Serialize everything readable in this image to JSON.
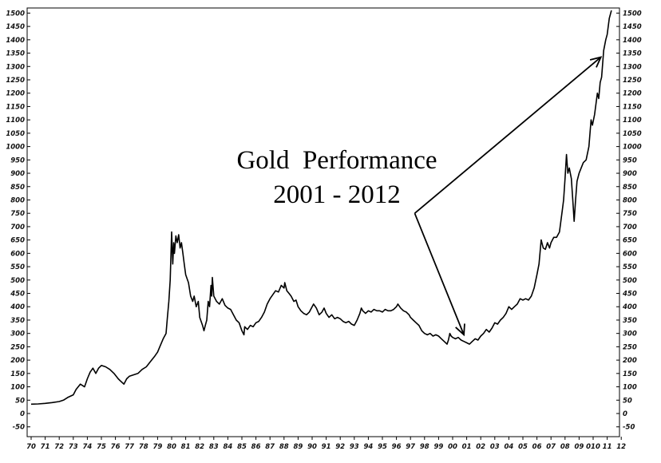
{
  "chart_data": {
    "type": "line",
    "title_lines": [
      "Gold  Performance",
      "2001 - 2012"
    ],
    "xlabel": "",
    "ylabel": "",
    "xlim": [
      1970,
      1913
    ],
    "ylim": [
      -50,
      1500
    ],
    "y_ticks": [
      -50,
      0,
      50,
      100,
      150,
      200,
      250,
      300,
      350,
      400,
      450,
      500,
      550,
      600,
      650,
      700,
      750,
      800,
      850,
      900,
      950,
      1000,
      1050,
      1100,
      1150,
      1200,
      1250,
      1300,
      1350,
      1400,
      1450,
      1500
    ],
    "x_ticks": [
      {
        "label": "70",
        "x": 1970
      },
      {
        "label": "71",
        "x": 1971
      },
      {
        "label": "72",
        "x": 1972
      },
      {
        "label": "73",
        "x": 1973
      },
      {
        "label": "74",
        "x": 1974
      },
      {
        "label": "75",
        "x": 1975
      },
      {
        "label": "76",
        "x": 1976
      },
      {
        "label": "77",
        "x": 1977
      },
      {
        "label": "78",
        "x": 1978
      },
      {
        "label": "79",
        "x": 1979
      },
      {
        "label": "80",
        "x": 1980
      },
      {
        "label": "81",
        "x": 1981
      },
      {
        "label": "82",
        "x": 1982
      },
      {
        "label": "83",
        "x": 1983
      },
      {
        "label": "84",
        "x": 1984
      },
      {
        "label": "85",
        "x": 1985
      },
      {
        "label": "86",
        "x": 1986
      },
      {
        "label": "87",
        "x": 1987
      },
      {
        "label": "88",
        "x": 1988
      },
      {
        "label": "89",
        "x": 1989
      },
      {
        "label": "90",
        "x": 1990
      },
      {
        "label": "91",
        "x": 1991
      },
      {
        "label": "92",
        "x": 1992
      },
      {
        "label": "93",
        "x": 1993
      },
      {
        "label": "94",
        "x": 1994
      },
      {
        "label": "95",
        "x": 1995
      },
      {
        "label": "96",
        "x": 1996
      },
      {
        "label": "97",
        "x": 1997
      },
      {
        "label": "98",
        "x": 1998
      },
      {
        "label": "99",
        "x": 1999
      },
      {
        "label": "00",
        "x": 2000
      },
      {
        "label": "01",
        "x": 2001
      },
      {
        "label": "02",
        "x": 2002
      },
      {
        "label": "03",
        "x": 2003
      },
      {
        "label": "04",
        "x": 2004
      },
      {
        "label": "05",
        "x": 2005
      },
      {
        "label": "06",
        "x": 2006
      },
      {
        "label": "07",
        "x": 2007
      },
      {
        "label": "08",
        "x": 2008
      },
      {
        "label": "09",
        "x": 2009
      },
      {
        "label": "010",
        "x": 2010
      },
      {
        "label": "11",
        "x": 2011
      },
      {
        "label": "12",
        "x": 2012
      }
    ],
    "series": [
      {
        "color": "#000000",
        "points": [
          [
            1970.0,
            35
          ],
          [
            1970.5,
            36
          ],
          [
            1971.0,
            38
          ],
          [
            1971.5,
            41
          ],
          [
            1972.0,
            45
          ],
          [
            1972.3,
            50
          ],
          [
            1972.6,
            60
          ],
          [
            1973.0,
            70
          ],
          [
            1973.2,
            90
          ],
          [
            1973.5,
            110
          ],
          [
            1973.8,
            100
          ],
          [
            1974.0,
            130
          ],
          [
            1974.2,
            155
          ],
          [
            1974.4,
            170
          ],
          [
            1974.6,
            150
          ],
          [
            1974.8,
            170
          ],
          [
            1975.0,
            180
          ],
          [
            1975.3,
            175
          ],
          [
            1975.6,
            165
          ],
          [
            1975.9,
            150
          ],
          [
            1976.2,
            130
          ],
          [
            1976.4,
            120
          ],
          [
            1976.6,
            110
          ],
          [
            1976.8,
            130
          ],
          [
            1977.0,
            140
          ],
          [
            1977.3,
            145
          ],
          [
            1977.6,
            150
          ],
          [
            1977.9,
            165
          ],
          [
            1978.2,
            175
          ],
          [
            1978.5,
            195
          ],
          [
            1978.8,
            215
          ],
          [
            1979.0,
            230
          ],
          [
            1979.2,
            255
          ],
          [
            1979.4,
            280
          ],
          [
            1979.6,
            300
          ],
          [
            1979.7,
            360
          ],
          [
            1979.8,
            420
          ],
          [
            1979.9,
            500
          ],
          [
            1980.0,
            680
          ],
          [
            1980.08,
            560
          ],
          [
            1980.15,
            640
          ],
          [
            1980.2,
            600
          ],
          [
            1980.3,
            665
          ],
          [
            1980.4,
            640
          ],
          [
            1980.5,
            670
          ],
          [
            1980.6,
            620
          ],
          [
            1980.7,
            640
          ],
          [
            1980.8,
            600
          ],
          [
            1980.9,
            560
          ],
          [
            1981.0,
            520
          ],
          [
            1981.2,
            490
          ],
          [
            1981.35,
            440
          ],
          [
            1981.5,
            420
          ],
          [
            1981.6,
            440
          ],
          [
            1981.75,
            400
          ],
          [
            1981.9,
            420
          ],
          [
            1982.0,
            360
          ],
          [
            1982.2,
            330
          ],
          [
            1982.3,
            310
          ],
          [
            1982.4,
            330
          ],
          [
            1982.5,
            350
          ],
          [
            1982.6,
            420
          ],
          [
            1982.7,
            400
          ],
          [
            1982.8,
            480
          ],
          [
            1982.85,
            440
          ],
          [
            1982.9,
            510
          ],
          [
            1983.0,
            440
          ],
          [
            1983.2,
            420
          ],
          [
            1983.4,
            410
          ],
          [
            1983.6,
            430
          ],
          [
            1983.8,
            405
          ],
          [
            1984.0,
            395
          ],
          [
            1984.2,
            390
          ],
          [
            1984.4,
            370
          ],
          [
            1984.6,
            350
          ],
          [
            1984.8,
            340
          ],
          [
            1985.0,
            310
          ],
          [
            1985.15,
            295
          ],
          [
            1985.2,
            325
          ],
          [
            1985.4,
            315
          ],
          [
            1985.6,
            330
          ],
          [
            1985.8,
            325
          ],
          [
            1986.0,
            340
          ],
          [
            1986.2,
            345
          ],
          [
            1986.4,
            360
          ],
          [
            1986.6,
            380
          ],
          [
            1986.8,
            410
          ],
          [
            1987.0,
            430
          ],
          [
            1987.2,
            445
          ],
          [
            1987.4,
            460
          ],
          [
            1987.6,
            455
          ],
          [
            1987.8,
            480
          ],
          [
            1988.0,
            470
          ],
          [
            1988.05,
            490
          ],
          [
            1988.2,
            460
          ],
          [
            1988.35,
            450
          ],
          [
            1988.5,
            440
          ],
          [
            1988.7,
            420
          ],
          [
            1988.85,
            425
          ],
          [
            1989.0,
            400
          ],
          [
            1989.2,
            385
          ],
          [
            1989.4,
            375
          ],
          [
            1989.6,
            370
          ],
          [
            1989.8,
            380
          ],
          [
            1990.0,
            400
          ],
          [
            1990.1,
            410
          ],
          [
            1990.3,
            395
          ],
          [
            1990.5,
            370
          ],
          [
            1990.7,
            380
          ],
          [
            1990.85,
            395
          ],
          [
            1991.0,
            375
          ],
          [
            1991.2,
            360
          ],
          [
            1991.4,
            370
          ],
          [
            1991.6,
            355
          ],
          [
            1991.8,
            360
          ],
          [
            1992.0,
            355
          ],
          [
            1992.2,
            345
          ],
          [
            1992.4,
            340
          ],
          [
            1992.6,
            345
          ],
          [
            1992.8,
            335
          ],
          [
            1993.0,
            330
          ],
          [
            1993.2,
            350
          ],
          [
            1993.4,
            375
          ],
          [
            1993.5,
            395
          ],
          [
            1993.6,
            385
          ],
          [
            1993.8,
            375
          ],
          [
            1994.0,
            385
          ],
          [
            1994.2,
            380
          ],
          [
            1994.4,
            390
          ],
          [
            1994.6,
            385
          ],
          [
            1994.8,
            385
          ],
          [
            1995.0,
            380
          ],
          [
            1995.2,
            390
          ],
          [
            1995.4,
            385
          ],
          [
            1995.6,
            385
          ],
          [
            1995.8,
            390
          ],
          [
            1996.0,
            400
          ],
          [
            1996.1,
            410
          ],
          [
            1996.3,
            395
          ],
          [
            1996.5,
            385
          ],
          [
            1996.7,
            380
          ],
          [
            1996.9,
            370
          ],
          [
            1997.0,
            360
          ],
          [
            1997.2,
            350
          ],
          [
            1997.4,
            340
          ],
          [
            1997.6,
            330
          ],
          [
            1997.8,
            310
          ],
          [
            1998.0,
            300
          ],
          [
            1998.2,
            295
          ],
          [
            1998.4,
            300
          ],
          [
            1998.6,
            290
          ],
          [
            1998.8,
            295
          ],
          [
            1999.0,
            290
          ],
          [
            1999.2,
            280
          ],
          [
            1999.4,
            270
          ],
          [
            1999.6,
            260
          ],
          [
            1999.7,
            275
          ],
          [
            1999.8,
            300
          ],
          [
            1999.9,
            290
          ],
          [
            2000.0,
            285
          ],
          [
            2000.2,
            280
          ],
          [
            2000.4,
            285
          ],
          [
            2000.6,
            275
          ],
          [
            2000.8,
            270
          ],
          [
            2001.0,
            265
          ],
          [
            2001.2,
            260
          ],
          [
            2001.4,
            270
          ],
          [
            2001.6,
            280
          ],
          [
            2001.8,
            275
          ],
          [
            2002.0,
            290
          ],
          [
            2002.2,
            300
          ],
          [
            2002.4,
            315
          ],
          [
            2002.6,
            305
          ],
          [
            2002.8,
            320
          ],
          [
            2003.0,
            340
          ],
          [
            2003.2,
            335
          ],
          [
            2003.4,
            350
          ],
          [
            2003.6,
            360
          ],
          [
            2003.8,
            375
          ],
          [
            2004.0,
            400
          ],
          [
            2004.2,
            390
          ],
          [
            2004.4,
            400
          ],
          [
            2004.6,
            410
          ],
          [
            2004.8,
            430
          ],
          [
            2005.0,
            425
          ],
          [
            2005.2,
            430
          ],
          [
            2005.4,
            425
          ],
          [
            2005.6,
            440
          ],
          [
            2005.8,
            470
          ],
          [
            2006.0,
            520
          ],
          [
            2006.15,
            560
          ],
          [
            2006.3,
            650
          ],
          [
            2006.45,
            620
          ],
          [
            2006.6,
            615
          ],
          [
            2006.75,
            640
          ],
          [
            2006.9,
            620
          ],
          [
            2007.0,
            640
          ],
          [
            2007.2,
            660
          ],
          [
            2007.4,
            660
          ],
          [
            2007.6,
            680
          ],
          [
            2007.8,
            760
          ],
          [
            2007.9,
            800
          ],
          [
            2008.0,
            880
          ],
          [
            2008.1,
            970
          ],
          [
            2008.2,
            900
          ],
          [
            2008.3,
            920
          ],
          [
            2008.45,
            880
          ],
          [
            2008.55,
            800
          ],
          [
            2008.65,
            720
          ],
          [
            2008.75,
            800
          ],
          [
            2008.85,
            870
          ],
          [
            2009.0,
            900
          ],
          [
            2009.15,
            920
          ],
          [
            2009.3,
            940
          ],
          [
            2009.5,
            950
          ],
          [
            2009.7,
            1000
          ],
          [
            2009.85,
            1100
          ],
          [
            2009.95,
            1080
          ],
          [
            2010.1,
            1120
          ],
          [
            2010.3,
            1200
          ],
          [
            2010.4,
            1180
          ],
          [
            2010.5,
            1240
          ],
          [
            2010.6,
            1260
          ],
          [
            2010.75,
            1360
          ],
          [
            2010.9,
            1400
          ],
          [
            2011.0,
            1420
          ],
          [
            2011.15,
            1480
          ],
          [
            2011.3,
            1510
          ]
        ]
      }
    ],
    "annotation": {
      "vertex": [
        1997.3,
        750
      ],
      "arrow_tips": [
        [
          2000.8,
          295
        ],
        [
          2010.55,
          1335
        ]
      ]
    }
  }
}
